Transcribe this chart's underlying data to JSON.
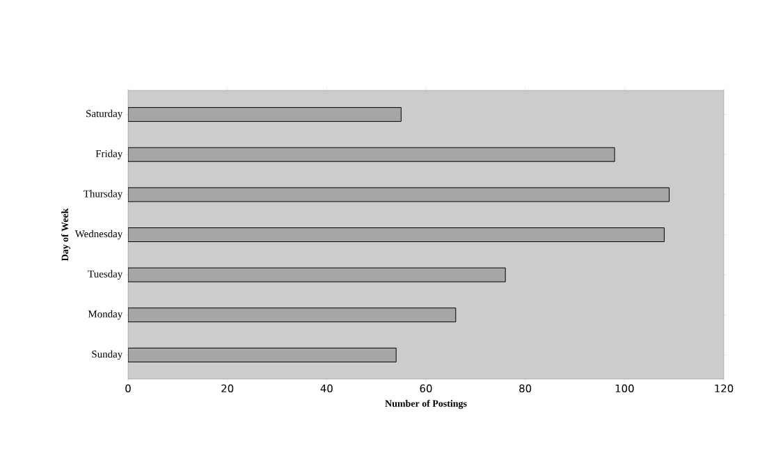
{
  "chart_data": {
    "type": "bar",
    "orientation": "horizontal",
    "xlabel": "Number of Postings",
    "ylabel": "Day of Week",
    "categories": [
      "Saturday",
      "Friday",
      "Thursday",
      "Wednesday",
      "Tuesday",
      "Monday",
      "Sunday"
    ],
    "values": [
      55,
      98,
      109,
      108,
      76,
      66,
      54
    ],
    "color": "#a6a6a6",
    "xlim": [
      0,
      120
    ],
    "xticks": [
      0,
      20,
      40,
      60,
      80,
      100,
      120
    ]
  }
}
